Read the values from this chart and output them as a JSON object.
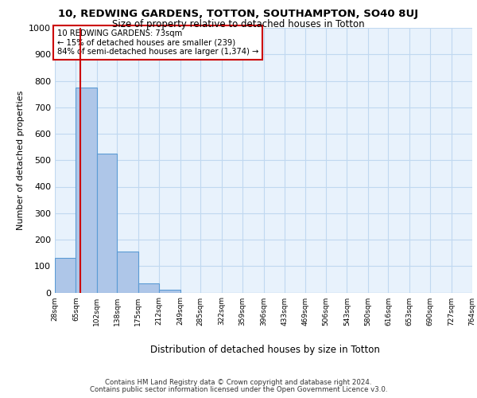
{
  "title1": "10, REDWING GARDENS, TOTTON, SOUTHAMPTON, SO40 8UJ",
  "title2": "Size of property relative to detached houses in Totton",
  "xlabel": "Distribution of detached houses by size in Totton",
  "ylabel": "Number of detached properties",
  "bin_edges": [
    28,
    65,
    102,
    138,
    175,
    212,
    249,
    285,
    322,
    359,
    396,
    433,
    469,
    506,
    543,
    580,
    616,
    653,
    690,
    727,
    764
  ],
  "bar_heights": [
    130,
    775,
    525,
    155,
    35,
    10,
    0,
    0,
    0,
    0,
    0,
    0,
    0,
    0,
    0,
    0,
    0,
    0,
    0,
    0
  ],
  "bar_color": "#aec6e8",
  "bar_edge_color": "#5b9bd5",
  "grid_color": "#c0d8f0",
  "background_color": "#e8f2fc",
  "vline_x": 73,
  "vline_color": "#cc0000",
  "annotation_text": "10 REDWING GARDENS: 73sqm\n← 15% of detached houses are smaller (239)\n84% of semi-detached houses are larger (1,374) →",
  "annotation_box_color": "#ffffff",
  "annotation_box_edge": "#cc0000",
  "ylim": [
    0,
    1000
  ],
  "yticks": [
    0,
    100,
    200,
    300,
    400,
    500,
    600,
    700,
    800,
    900,
    1000
  ],
  "footer1": "Contains HM Land Registry data © Crown copyright and database right 2024.",
  "footer2": "Contains public sector information licensed under the Open Government Licence v3.0."
}
